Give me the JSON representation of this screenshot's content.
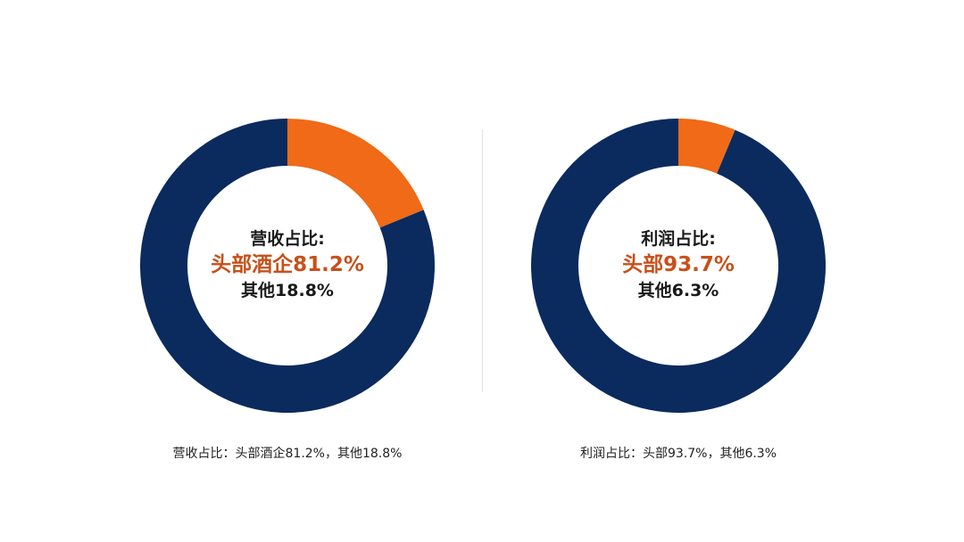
{
  "colors": {
    "primary": "#0b2a5e",
    "accent": "#f06a17",
    "highlight_text": "#c8501a"
  },
  "chart_data": [
    {
      "type": "pie",
      "donut": true,
      "slices": [
        {
          "name": "头部酒企",
          "value": 81.2
        },
        {
          "name": "其他",
          "value": 18.8
        }
      ],
      "center": {
        "title": "营收占比:",
        "main": "头部酒企81.2%",
        "other": "其他18.8%"
      },
      "caption": "营收占比：头部酒企81.2%，其他18.8%"
    },
    {
      "type": "pie",
      "donut": true,
      "slices": [
        {
          "name": "头部",
          "value": 93.7
        },
        {
          "name": "其他",
          "value": 6.3
        }
      ],
      "center": {
        "title": "利润占比:",
        "main": "头部93.7%",
        "other": "其他6.3%"
      },
      "caption": "利润占比：头部93.7%，其他6.3%"
    }
  ]
}
